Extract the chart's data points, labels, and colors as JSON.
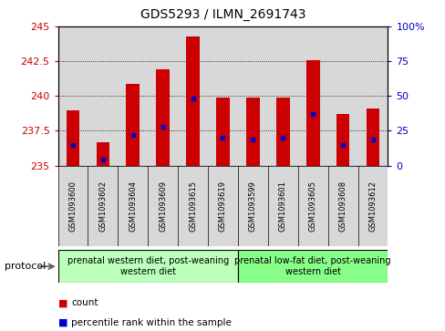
{
  "title": "GDS5293 / ILMN_2691743",
  "samples": [
    "GSM1093600",
    "GSM1093602",
    "GSM1093604",
    "GSM1093609",
    "GSM1093615",
    "GSM1093619",
    "GSM1093599",
    "GSM1093601",
    "GSM1093605",
    "GSM1093608",
    "GSM1093612"
  ],
  "counts": [
    239.0,
    236.7,
    240.9,
    241.9,
    244.3,
    239.9,
    239.9,
    239.9,
    242.55,
    238.7,
    239.1
  ],
  "percentiles": [
    15,
    4,
    22,
    28,
    48,
    20,
    19,
    20,
    37,
    15,
    19
  ],
  "ymin": 235,
  "ymax": 245,
  "yticks": [
    235,
    237.5,
    240,
    242.5,
    245
  ],
  "y2ticks": [
    0,
    25,
    50,
    75,
    100
  ],
  "group1_label": "prenatal western diet, post-weaning\nwestern diet",
  "group2_label": "prenatal low-fat diet, post-weaning\nwestern diet",
  "group1_indices": [
    0,
    1,
    2,
    3,
    4,
    5
  ],
  "group2_indices": [
    6,
    7,
    8,
    9,
    10
  ],
  "protocol_label": "protocol",
  "bar_color": "#cc0000",
  "dot_color": "#0000cc",
  "bar_width": 0.45,
  "plot_bg_color": "#d8d8d8",
  "group1_bg": "#bbffbb",
  "group2_bg": "#88ff88",
  "left_axis_color": "#cc0000",
  "right_axis_color": "#0000cc"
}
